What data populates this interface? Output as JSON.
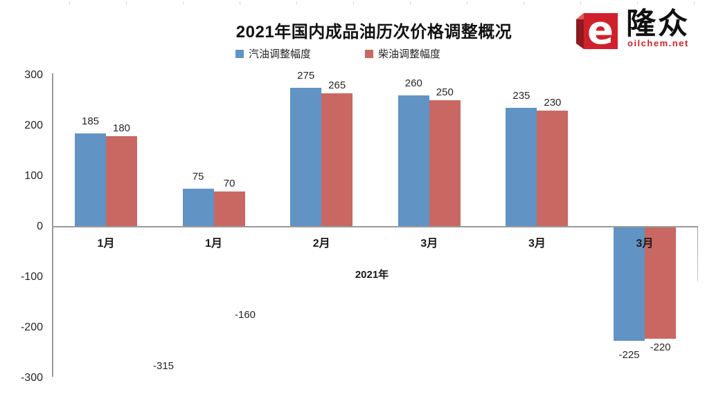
{
  "header": {
    "title": "2021年国内成品油历次价格调整概况"
  },
  "logo": {
    "brand_cn": "隆众",
    "brand_domain": "oilchem.net",
    "red": "#d0202b",
    "dark_red": "#8f1a22",
    "top_red": "#e2574f"
  },
  "chart_data": {
    "type": "bar",
    "title": "2021年国内成品油历次价格调整概况",
    "categories": [
      "1月",
      "1月",
      "2月",
      "3月",
      "3月",
      "3月"
    ],
    "series": [
      {
        "name": "汽油调整幅度",
        "key": "gasoline",
        "color": "#6193c4",
        "values": [
          185,
          75,
          275,
          260,
          235,
          -225
        ]
      },
      {
        "name": "柴油调整幅度",
        "key": "diesel",
        "color": "#c96863",
        "values": [
          180,
          70,
          265,
          250,
          230,
          -220
        ]
      }
    ],
    "xlabel": "2021年",
    "ylabel": "",
    "ylim": [
      -300,
      300
    ],
    "y_ticks": [
      300,
      200,
      100,
      0,
      -100,
      -200,
      -300
    ],
    "grid": false,
    "legend_position": "top-center",
    "annotations": [
      {
        "text": "-160",
        "x": 354,
        "y": 447
      },
      {
        "text": "-315",
        "x": 236,
        "y": 521
      }
    ],
    "axis_color": "#9a9a9a",
    "label_color": "#262626"
  }
}
